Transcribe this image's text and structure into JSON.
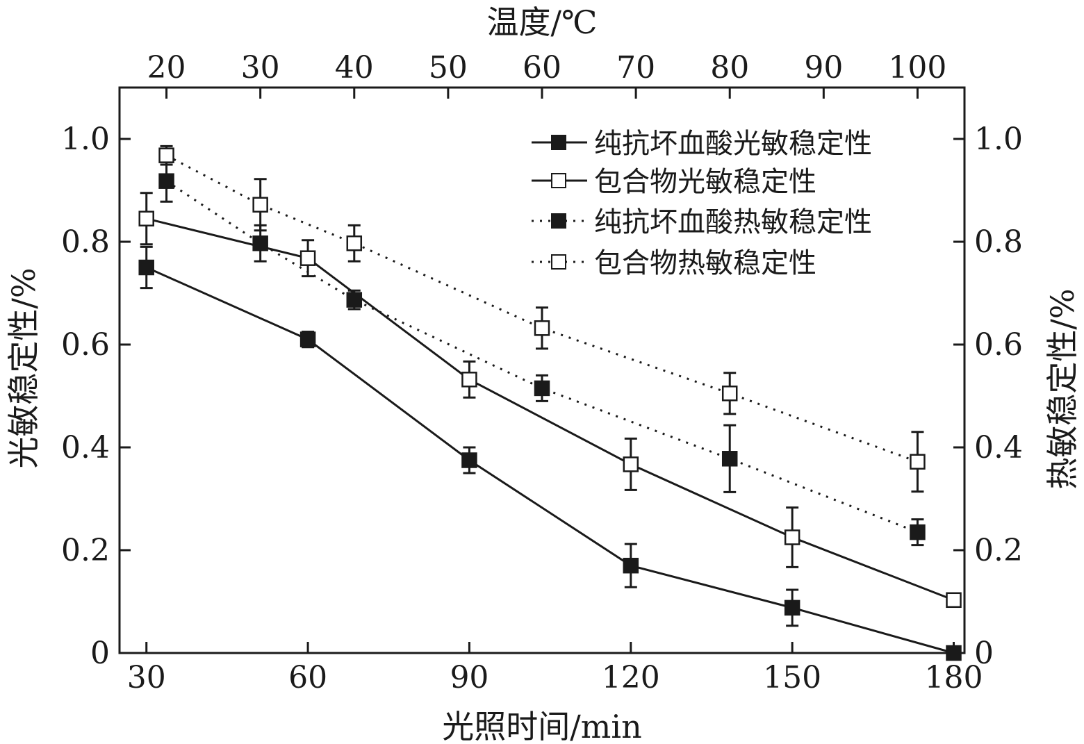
{
  "chart_data": {
    "type": "line",
    "title": "",
    "xlabel_bottom": "光照时间/min",
    "xlabel_top": "温度/℃",
    "ylabel_left": "光敏稳定性/%",
    "ylabel_right": "热敏稳定性/%",
    "x_bottom_ticks": [
      "30",
      "60",
      "90",
      "120",
      "150",
      "180"
    ],
    "x_top_ticks": [
      "20",
      "30",
      "40",
      "50",
      "60",
      "70",
      "80",
      "90",
      "100"
    ],
    "y_ticks": [
      "0",
      "0.2",
      "0.4",
      "0.6",
      "0.8",
      "1.0"
    ],
    "xlim_bottom": [
      25,
      182
    ],
    "xlim_top": [
      15,
      105
    ],
    "ylim": [
      0,
      1.1
    ],
    "legend_position": "top-right",
    "series": [
      {
        "name": "纯抗坏血酸光敏稳定性",
        "axis": "bottom",
        "line": "solid",
        "marker": "filled-square",
        "x": [
          30,
          60,
          90,
          120,
          150,
          180
        ],
        "y": [
          0.75,
          0.61,
          0.375,
          0.17,
          0.088,
          0.0
        ],
        "err": [
          0.04,
          0.015,
          0.025,
          0.042,
          0.035,
          0.0
        ]
      },
      {
        "name": "包合物光敏稳定性",
        "axis": "bottom",
        "line": "solid",
        "marker": "open-square",
        "x": [
          30,
          60,
          90,
          120,
          150,
          180
        ],
        "y": [
          0.845,
          0.768,
          0.532,
          0.367,
          0.225,
          0.103
        ],
        "err": [
          0.05,
          0.035,
          0.035,
          0.05,
          0.058,
          0.0
        ]
      },
      {
        "name": "纯抗坏血酸热敏稳定性",
        "axis": "top",
        "line": "dotted",
        "marker": "filled-square",
        "x": [
          20,
          30,
          40,
          60,
          80,
          100
        ],
        "y": [
          0.918,
          0.797,
          0.687,
          0.515,
          0.378,
          0.235
        ],
        "err": [
          0.04,
          0.035,
          0.018,
          0.025,
          0.065,
          0.025
        ]
      },
      {
        "name": "包合物热敏稳定性",
        "axis": "top",
        "line": "dotted",
        "marker": "open-square",
        "x": [
          20,
          30,
          40,
          60,
          80,
          100
        ],
        "y": [
          0.968,
          0.872,
          0.797,
          0.632,
          0.505,
          0.372
        ],
        "err": [
          0.018,
          0.05,
          0.035,
          0.04,
          0.04,
          0.058
        ]
      }
    ]
  }
}
